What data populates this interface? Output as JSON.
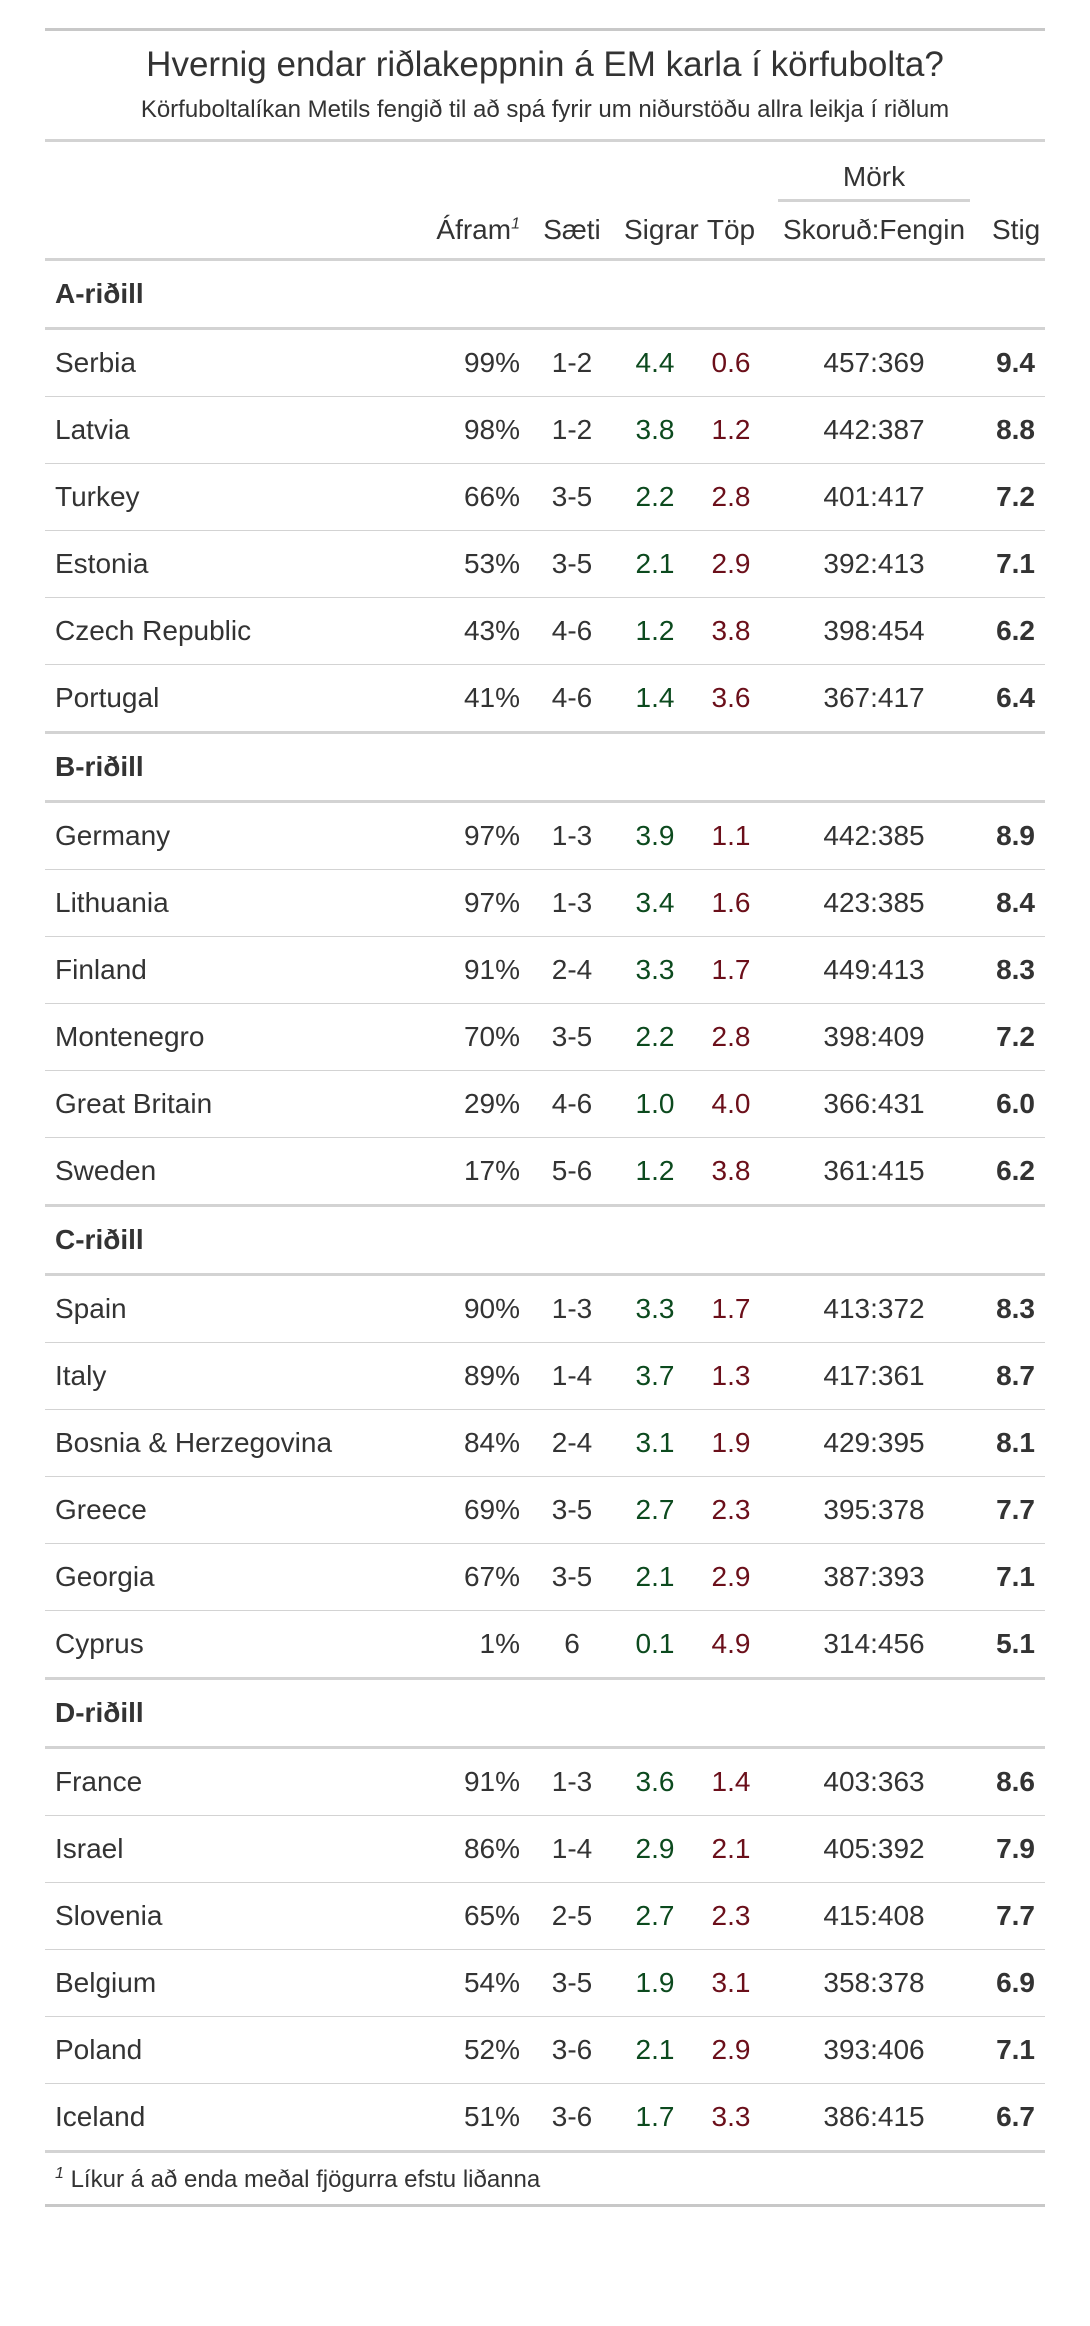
{
  "chart_data": {
    "type": "table",
    "title": "Hvernig endar riðlakeppnin á EM karla í körfubolta?",
    "subtitle": "Körfuboltalíkan Metils fengið til að spá fyrir um niðurstöðu allra leikja í riðlum",
    "spanner": "Mörk",
    "columns": [
      "",
      "Áfram",
      "Sæti",
      "Sigrar",
      "Töp",
      "Skoruð:Fengin",
      "Stig"
    ],
    "afram_footnote_mark": "1",
    "footnote_mark": "1",
    "footnote": "Líkur á að enda meðal fjögurra efstu liðanna",
    "colors": {
      "win": "#0c4a1e",
      "loss": "#6b0f1a",
      "rule": "#d3d3d3"
    },
    "groups": [
      {
        "name": "A-riðill",
        "rows": [
          {
            "team": "Serbia",
            "afram": "99%",
            "saeti": "1-2",
            "sigrar": "4.4",
            "top": "0.6",
            "mork": "457:369",
            "stig": "9.4"
          },
          {
            "team": "Latvia",
            "afram": "98%",
            "saeti": "1-2",
            "sigrar": "3.8",
            "top": "1.2",
            "mork": "442:387",
            "stig": "8.8"
          },
          {
            "team": "Turkey",
            "afram": "66%",
            "saeti": "3-5",
            "sigrar": "2.2",
            "top": "2.8",
            "mork": "401:417",
            "stig": "7.2"
          },
          {
            "team": "Estonia",
            "afram": "53%",
            "saeti": "3-5",
            "sigrar": "2.1",
            "top": "2.9",
            "mork": "392:413",
            "stig": "7.1"
          },
          {
            "team": "Czech Republic",
            "afram": "43%",
            "saeti": "4-6",
            "sigrar": "1.2",
            "top": "3.8",
            "mork": "398:454",
            "stig": "6.2"
          },
          {
            "team": "Portugal",
            "afram": "41%",
            "saeti": "4-6",
            "sigrar": "1.4",
            "top": "3.6",
            "mork": "367:417",
            "stig": "6.4"
          }
        ]
      },
      {
        "name": "B-riðill",
        "rows": [
          {
            "team": "Germany",
            "afram": "97%",
            "saeti": "1-3",
            "sigrar": "3.9",
            "top": "1.1",
            "mork": "442:385",
            "stig": "8.9"
          },
          {
            "team": "Lithuania",
            "afram": "97%",
            "saeti": "1-3",
            "sigrar": "3.4",
            "top": "1.6",
            "mork": "423:385",
            "stig": "8.4"
          },
          {
            "team": "Finland",
            "afram": "91%",
            "saeti": "2-4",
            "sigrar": "3.3",
            "top": "1.7",
            "mork": "449:413",
            "stig": "8.3"
          },
          {
            "team": "Montenegro",
            "afram": "70%",
            "saeti": "3-5",
            "sigrar": "2.2",
            "top": "2.8",
            "mork": "398:409",
            "stig": "7.2"
          },
          {
            "team": "Great Britain",
            "afram": "29%",
            "saeti": "4-6",
            "sigrar": "1.0",
            "top": "4.0",
            "mork": "366:431",
            "stig": "6.0"
          },
          {
            "team": "Sweden",
            "afram": "17%",
            "saeti": "5-6",
            "sigrar": "1.2",
            "top": "3.8",
            "mork": "361:415",
            "stig": "6.2"
          }
        ]
      },
      {
        "name": "C-riðill",
        "rows": [
          {
            "team": "Spain",
            "afram": "90%",
            "saeti": "1-3",
            "sigrar": "3.3",
            "top": "1.7",
            "mork": "413:372",
            "stig": "8.3"
          },
          {
            "team": "Italy",
            "afram": "89%",
            "saeti": "1-4",
            "sigrar": "3.7",
            "top": "1.3",
            "mork": "417:361",
            "stig": "8.7"
          },
          {
            "team": "Bosnia & Herzegovina",
            "afram": "84%",
            "saeti": "2-4",
            "sigrar": "3.1",
            "top": "1.9",
            "mork": "429:395",
            "stig": "8.1"
          },
          {
            "team": "Greece",
            "afram": "69%",
            "saeti": "3-5",
            "sigrar": "2.7",
            "top": "2.3",
            "mork": "395:378",
            "stig": "7.7"
          },
          {
            "team": "Georgia",
            "afram": "67%",
            "saeti": "3-5",
            "sigrar": "2.1",
            "top": "2.9",
            "mork": "387:393",
            "stig": "7.1"
          },
          {
            "team": "Cyprus",
            "afram": "1%",
            "saeti": "6",
            "sigrar": "0.1",
            "top": "4.9",
            "mork": "314:456",
            "stig": "5.1"
          }
        ]
      },
      {
        "name": "D-riðill",
        "rows": [
          {
            "team": "France",
            "afram": "91%",
            "saeti": "1-3",
            "sigrar": "3.6",
            "top": "1.4",
            "mork": "403:363",
            "stig": "8.6"
          },
          {
            "team": "Israel",
            "afram": "86%",
            "saeti": "1-4",
            "sigrar": "2.9",
            "top": "2.1",
            "mork": "405:392",
            "stig": "7.9"
          },
          {
            "team": "Slovenia",
            "afram": "65%",
            "saeti": "2-5",
            "sigrar": "2.7",
            "top": "2.3",
            "mork": "415:408",
            "stig": "7.7"
          },
          {
            "team": "Belgium",
            "afram": "54%",
            "saeti": "3-5",
            "sigrar": "1.9",
            "top": "3.1",
            "mork": "358:378",
            "stig": "6.9"
          },
          {
            "team": "Poland",
            "afram": "52%",
            "saeti": "3-6",
            "sigrar": "2.1",
            "top": "2.9",
            "mork": "393:406",
            "stig": "7.1"
          },
          {
            "team": "Iceland",
            "afram": "51%",
            "saeti": "3-6",
            "sigrar": "1.7",
            "top": "3.3",
            "mork": "386:415",
            "stig": "6.7"
          }
        ]
      }
    ]
  }
}
